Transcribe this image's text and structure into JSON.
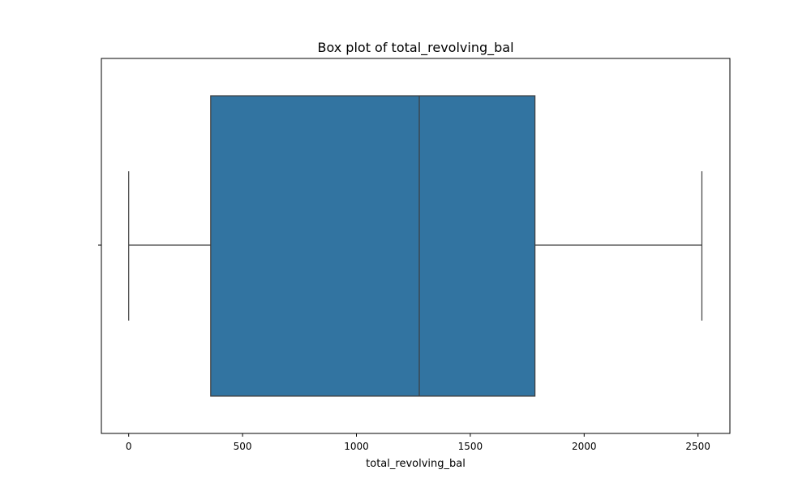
{
  "chart_data": {
    "type": "box",
    "title": "Box plot of total_revolving_bal",
    "xlabel": "total_revolving_bal",
    "ylabel": "",
    "xlim": [
      -120,
      2640
    ],
    "xticks": [
      0,
      500,
      1000,
      1500,
      2000,
      2500
    ],
    "xtick_labels": [
      "0",
      "500",
      "1000",
      "1500",
      "2000",
      "2500"
    ],
    "orientation": "horizontal",
    "grid": false,
    "box": {
      "whisker_low": 0,
      "q1": 360,
      "median": 1276,
      "q3": 1784,
      "whisker_high": 2517
    },
    "colors": {
      "box_fill": "#3274a1",
      "line": "#3d3d3d",
      "axis": "#000000"
    }
  }
}
